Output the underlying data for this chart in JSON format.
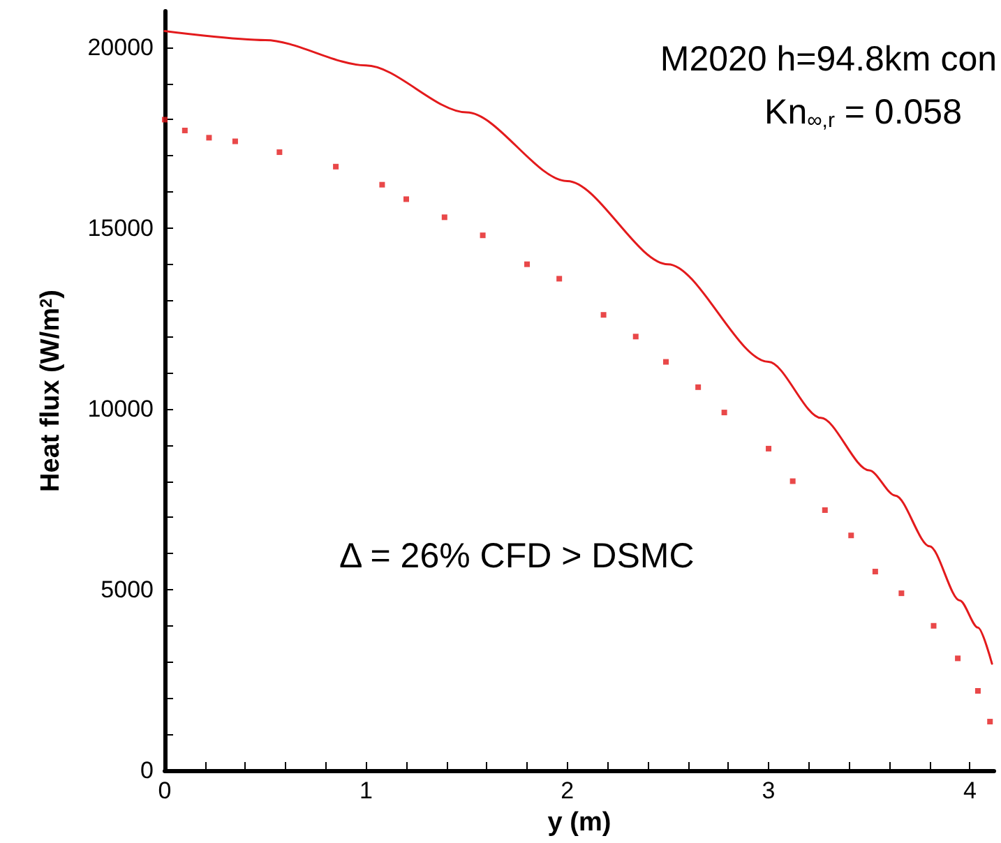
{
  "chart_data": {
    "type": "line",
    "xlabel": "y (m)",
    "ylabel": "Heat flux (W/m$^{2}$)",
    "xlim": [
      0,
      4.12
    ],
    "ylim": [
      0,
      21000
    ],
    "xticks": [
      0,
      {
        "value": 0.2,
        "label": null
      },
      {
        "value": 0.4,
        "label": null
      },
      {
        "value": 0.6,
        "label": null
      },
      {
        "value": 0.8,
        "label": null
      },
      1,
      {
        "value": 1.2,
        "label": null
      },
      {
        "value": 1.4,
        "label": null
      },
      {
        "value": 1.6,
        "label": null
      },
      {
        "value": 1.8,
        "label": null
      },
      2,
      {
        "value": 2.2,
        "label": null
      },
      {
        "value": 2.4,
        "label": null
      },
      {
        "value": 2.6,
        "label": null
      },
      {
        "value": 2.8,
        "label": null
      },
      3,
      {
        "value": 3.2,
        "label": null
      },
      {
        "value": 3.4,
        "label": null
      },
      {
        "value": 3.6,
        "label": null
      },
      {
        "value": 3.8,
        "label": null
      },
      4
    ],
    "yticks": [
      0,
      {
        "value": 1000,
        "label": null
      },
      {
        "value": 2000,
        "label": null
      },
      {
        "value": 3000,
        "label": null
      },
      {
        "value": 4000,
        "label": null
      },
      5000,
      {
        "value": 6000,
        "label": null
      },
      {
        "value": 7000,
        "label": null
      },
      {
        "value": 8000,
        "label": null
      },
      {
        "value": 9000,
        "label": null
      },
      10000,
      {
        "value": 11000,
        "label": null
      },
      {
        "value": 12000,
        "label": null
      },
      {
        "value": 13000,
        "label": null
      },
      {
        "value": 14000,
        "label": null
      },
      15000,
      {
        "value": 16000,
        "label": null
      },
      {
        "value": 17000,
        "label": null
      },
      {
        "value": 18000,
        "label": null
      },
      {
        "value": 19000,
        "label": null
      },
      20000
    ],
    "annotations": [
      "M2020 h=94.8km con",
      "Kn$_{∞,r}$ = 0.058",
      "Δ = 26% CFD > DSMC"
    ],
    "series": [
      {
        "color": "#e31a1c",
        "marker": "none",
        "line_style": "solid",
        "x": [
          0,
          0.5,
          1,
          1.5,
          2,
          2.5,
          3,
          3.26,
          3.5,
          3.63,
          3.8,
          3.95,
          4.04,
          4.11
        ],
        "values": [
          20450,
          20200,
          19500,
          18200,
          16300,
          14000,
          11300,
          9750,
          8300,
          7600,
          6200,
          4700,
          3950,
          2950
        ]
      },
      {
        "type": "scatter",
        "color": "#e31a1c",
        "marker": "square",
        "x": [
          0,
          0.1,
          0.22,
          0.35,
          0.57,
          0.85,
          1.08,
          1.2,
          1.39,
          1.58,
          1.8,
          1.96,
          2.18,
          2.34,
          2.49,
          2.65,
          2.78,
          3.0,
          3.12,
          3.28,
          3.41,
          3.53,
          3.66,
          3.82,
          3.94,
          4.04,
          4.1
        ],
        "values": [
          18000,
          17700,
          17500,
          17400,
          17100,
          16700,
          16200,
          15800,
          15300,
          14800,
          14000,
          13600,
          12600,
          12000,
          11300,
          10600,
          9900,
          8900,
          8000,
          7200,
          6500,
          5500,
          4900,
          4000,
          3100,
          2200,
          1350
        ]
      }
    ]
  }
}
